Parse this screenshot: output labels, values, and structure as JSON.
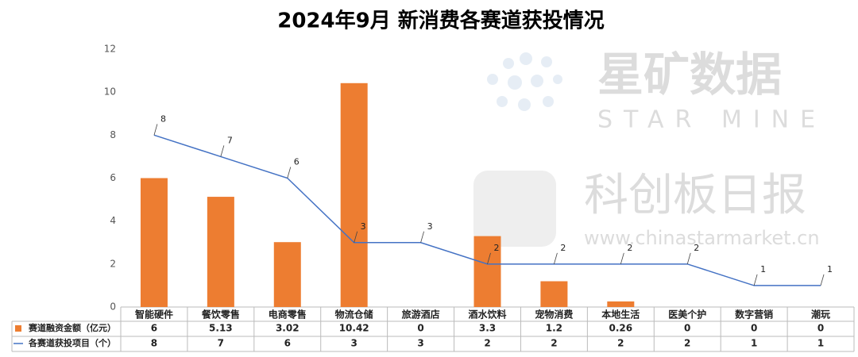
{
  "chart_data": {
    "type": "bar-line",
    "title": "2024年9月 新消费各赛道获投情况",
    "categories": [
      "智能硬件",
      "餐饮零售",
      "电商零售",
      "物流仓储",
      "旅游酒店",
      "酒水饮料",
      "宠物消费",
      "本地生活",
      "医美个护",
      "数字营销",
      "潮玩"
    ],
    "series": [
      {
        "name": "赛道融资金额（亿元）",
        "type": "bar",
        "color": "#ed7d31",
        "values": [
          6,
          5.13,
          3.02,
          10.42,
          0,
          3.3,
          1.2,
          0.26,
          0,
          0,
          0
        ]
      },
      {
        "name": "各赛道获投项目（个）",
        "type": "line",
        "color": "#4472c4",
        "values": [
          8,
          7,
          6,
          3,
          3,
          2,
          2,
          2,
          2,
          1,
          1
        ]
      }
    ],
    "ylim": [
      0,
      12
    ],
    "yticks": [
      0,
      2,
      4,
      6,
      8,
      10,
      12
    ],
    "grid": false,
    "watermarks": [
      "星矿数据",
      "STAR MINE",
      "科创板日报",
      "www.chinastarmarket.cn"
    ]
  }
}
